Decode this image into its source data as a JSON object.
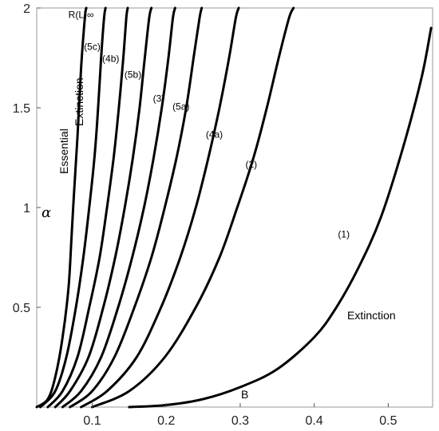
{
  "chart_data": {
    "type": "line",
    "xlim": [
      0.025,
      0.56
    ],
    "ylim": [
      0,
      2
    ],
    "x_ticks": [
      "0.1",
      "0.2",
      "0.3",
      "0.4",
      "0.5"
    ],
    "x_tick_values": [
      0.1,
      0.2,
      0.3,
      0.4,
      0.5
    ],
    "y_ticks": [
      "0.5",
      "1",
      "1.5",
      "2"
    ],
    "y_tick_values": [
      0.5,
      1,
      1.5,
      2
    ],
    "ylabel": "α",
    "grid": false,
    "annotations": {
      "extinction": "Extinction",
      "essential_extinction_1": "Essential",
      "essential_extinction_2": "Extinction",
      "b_point": "B"
    },
    "series": [
      {
        "name": "R(L)∞",
        "label_x": 0.085,
        "label_y": 1.95,
        "x": [
          0.025,
          0.04,
          0.05,
          0.06,
          0.068,
          0.072,
          0.075,
          0.08,
          0.085,
          0.09,
          0.092
        ],
        "y": [
          0.0,
          0.04,
          0.15,
          0.35,
          0.6,
          0.85,
          1.05,
          1.35,
          1.7,
          1.95,
          2.0
        ]
      },
      {
        "name": "(5c)",
        "label_x": 0.1,
        "label_y": 1.79,
        "x": [
          0.03,
          0.05,
          0.065,
          0.078,
          0.088,
          0.096,
          0.103,
          0.108,
          0.112,
          0.116,
          0.118
        ],
        "y": [
          0.0,
          0.08,
          0.25,
          0.5,
          0.75,
          1.0,
          1.25,
          1.5,
          1.75,
          1.95,
          2.0
        ]
      },
      {
        "name": "(4b)",
        "label_x": 0.125,
        "label_y": 1.73,
        "x": [
          0.04,
          0.06,
          0.08,
          0.096,
          0.11,
          0.12,
          0.129,
          0.136,
          0.142,
          0.146,
          0.148
        ],
        "y": [
          0.0,
          0.08,
          0.25,
          0.5,
          0.75,
          1.0,
          1.25,
          1.5,
          1.75,
          1.95,
          2.0
        ]
      },
      {
        "name": "(5b)",
        "label_x": 0.155,
        "label_y": 1.65,
        "x": [
          0.05,
          0.07,
          0.095,
          0.115,
          0.131,
          0.144,
          0.155,
          0.164,
          0.171,
          0.177,
          0.18
        ],
        "y": [
          0.0,
          0.08,
          0.25,
          0.5,
          0.75,
          1.0,
          1.25,
          1.5,
          1.75,
          1.95,
          2.0
        ]
      },
      {
        "name": "(3)",
        "label_x": 0.19,
        "label_y": 1.53,
        "x": [
          0.06,
          0.085,
          0.112,
          0.135,
          0.154,
          0.17,
          0.183,
          0.194,
          0.203,
          0.209,
          0.212
        ],
        "y": [
          0.0,
          0.08,
          0.25,
          0.5,
          0.75,
          1.0,
          1.25,
          1.5,
          1.75,
          1.95,
          2.0
        ]
      },
      {
        "name": "(5a)",
        "label_x": 0.22,
        "label_y": 1.49,
        "x": [
          0.07,
          0.1,
          0.13,
          0.157,
          0.18,
          0.198,
          0.214,
          0.227,
          0.237,
          0.245,
          0.248
        ],
        "y": [
          0.0,
          0.08,
          0.25,
          0.5,
          0.75,
          1.0,
          1.25,
          1.5,
          1.75,
          1.95,
          2.0
        ]
      },
      {
        "name": "(4a)",
        "label_x": 0.265,
        "label_y": 1.35,
        "x": [
          0.085,
          0.12,
          0.16,
          0.193,
          0.219,
          0.24,
          0.257,
          0.272,
          0.285,
          0.294,
          0.298
        ],
        "y": [
          0.0,
          0.08,
          0.25,
          0.5,
          0.75,
          1.0,
          1.25,
          1.5,
          1.75,
          1.95,
          2.0
        ]
      },
      {
        "name": "(2)",
        "label_x": 0.315,
        "label_y": 1.2,
        "x": [
          0.1,
          0.15,
          0.198,
          0.24,
          0.272,
          0.296,
          0.318,
          0.336,
          0.352,
          0.366,
          0.372
        ],
        "y": [
          0.0,
          0.08,
          0.25,
          0.5,
          0.75,
          1.0,
          1.25,
          1.5,
          1.75,
          1.95,
          2.0
        ]
      },
      {
        "name": "(1)",
        "label_x": 0.44,
        "label_y": 0.85,
        "x": [
          0.15,
          0.2,
          0.25,
          0.3,
          0.35,
          0.4,
          0.43,
          0.46,
          0.49,
          0.52,
          0.545,
          0.558
        ],
        "y": [
          0.0,
          0.01,
          0.04,
          0.1,
          0.19,
          0.35,
          0.5,
          0.7,
          0.95,
          1.3,
          1.65,
          1.9
        ]
      }
    ]
  }
}
